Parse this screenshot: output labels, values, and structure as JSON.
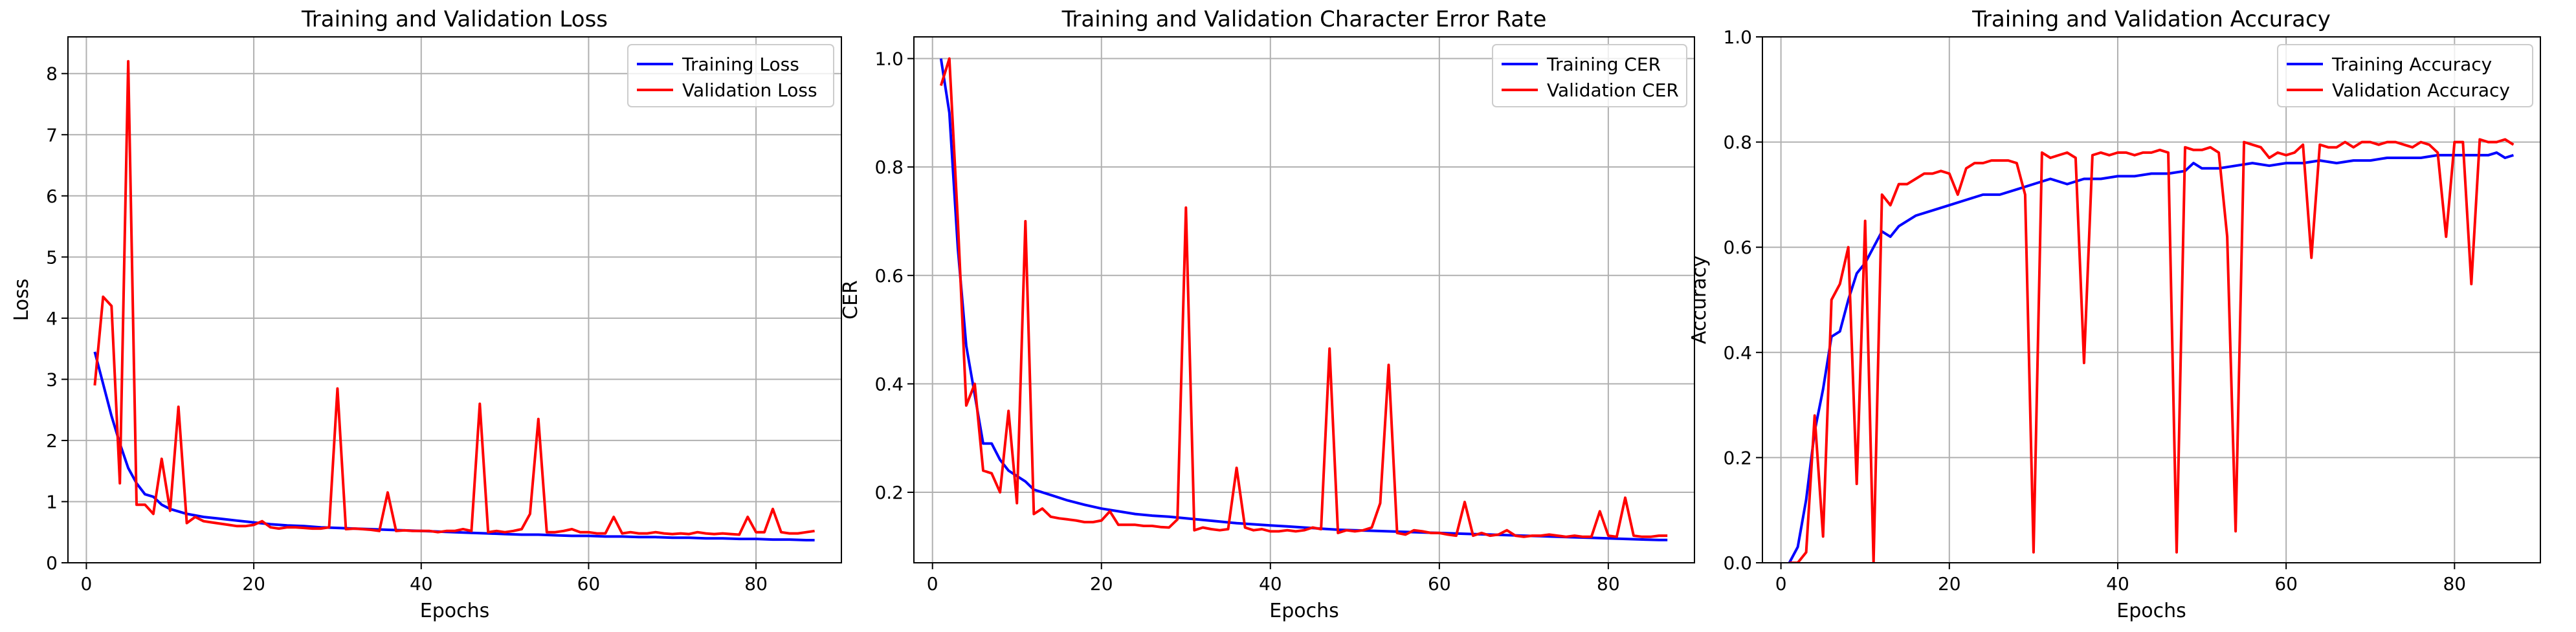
{
  "chart_data": [
    {
      "type": "line",
      "title": "Training and Validation Loss",
      "xlabel": "Epochs",
      "ylabel": "Loss",
      "xlim": [
        -2.2,
        90.2
      ],
      "ylim": [
        0,
        8.6
      ],
      "xticks": [
        0,
        20,
        40,
        60,
        80
      ],
      "yticks": [
        0,
        1,
        2,
        3,
        4,
        5,
        6,
        7,
        8
      ],
      "xticklabels": [
        "0",
        "20",
        "40",
        "60",
        "80"
      ],
      "yticklabels": [
        "0",
        "1",
        "2",
        "3",
        "4",
        "5",
        "6",
        "7",
        "8"
      ],
      "grid": true,
      "legend": "top-right",
      "series": [
        {
          "name": "Training Loss",
          "color": "#0000ff",
          "x": [
            1,
            3,
            4,
            5,
            6,
            7,
            8,
            9,
            10,
            12,
            14,
            16,
            18,
            20,
            22,
            24,
            26,
            28,
            30,
            32,
            34,
            36,
            38,
            40,
            42,
            44,
            46,
            48,
            50,
            52,
            54,
            56,
            58,
            60,
            62,
            64,
            66,
            68,
            70,
            72,
            74,
            76,
            78,
            80,
            82,
            84,
            86,
            87
          ],
          "y": [
            3.45,
            2.4,
            1.95,
            1.55,
            1.3,
            1.12,
            1.08,
            0.95,
            0.88,
            0.8,
            0.75,
            0.72,
            0.69,
            0.66,
            0.63,
            0.61,
            0.6,
            0.58,
            0.57,
            0.56,
            0.55,
            0.54,
            0.53,
            0.52,
            0.51,
            0.5,
            0.49,
            0.48,
            0.47,
            0.46,
            0.46,
            0.45,
            0.44,
            0.44,
            0.43,
            0.43,
            0.42,
            0.42,
            0.41,
            0.41,
            0.4,
            0.4,
            0.39,
            0.39,
            0.38,
            0.38,
            0.37,
            0.37
          ]
        },
        {
          "name": "Validation Loss",
          "color": "#ff0000",
          "x": [
            1,
            2,
            3,
            4,
            5,
            6,
            7,
            8,
            9,
            10,
            11,
            12,
            13,
            14,
            15,
            16,
            17,
            18,
            19,
            20,
            21,
            22,
            23,
            24,
            25,
            26,
            27,
            28,
            29,
            30,
            31,
            32,
            33,
            34,
            35,
            36,
            37,
            38,
            39,
            40,
            41,
            42,
            43,
            44,
            45,
            46,
            47,
            48,
            49,
            50,
            51,
            52,
            53,
            54,
            55,
            56,
            57,
            58,
            59,
            60,
            61,
            62,
            63,
            64,
            65,
            66,
            67,
            68,
            69,
            70,
            71,
            72,
            73,
            74,
            75,
            76,
            77,
            78,
            79,
            80,
            81,
            82,
            83,
            84,
            85,
            86,
            87
          ],
          "y": [
            2.9,
            4.35,
            4.2,
            1.3,
            8.2,
            0.95,
            0.95,
            0.8,
            1.7,
            0.85,
            2.55,
            0.65,
            0.75,
            0.68,
            0.66,
            0.64,
            0.62,
            0.6,
            0.6,
            0.62,
            0.68,
            0.58,
            0.56,
            0.58,
            0.58,
            0.57,
            0.56,
            0.56,
            0.58,
            2.85,
            0.55,
            0.56,
            0.55,
            0.54,
            0.52,
            1.15,
            0.52,
            0.53,
            0.52,
            0.52,
            0.52,
            0.5,
            0.52,
            0.52,
            0.55,
            0.52,
            2.6,
            0.5,
            0.52,
            0.5,
            0.52,
            0.55,
            0.8,
            2.35,
            0.5,
            0.5,
            0.52,
            0.55,
            0.5,
            0.5,
            0.48,
            0.48,
            0.75,
            0.48,
            0.5,
            0.48,
            0.48,
            0.5,
            0.48,
            0.47,
            0.48,
            0.47,
            0.5,
            0.48,
            0.47,
            0.48,
            0.47,
            0.46,
            0.75,
            0.5,
            0.5,
            0.88,
            0.5,
            0.48,
            0.48,
            0.5,
            0.52
          ]
        }
      ]
    },
    {
      "type": "line",
      "title": "Training and Validation Character Error Rate",
      "xlabel": "Epochs",
      "ylabel": "CER",
      "xlim": [
        -2.2,
        90.2
      ],
      "ylim": [
        0.07,
        1.04
      ],
      "xticks": [
        0,
        20,
        40,
        60,
        80
      ],
      "yticks": [
        0.2,
        0.4,
        0.6,
        0.8,
        1.0
      ],
      "xticklabels": [
        "0",
        "20",
        "40",
        "60",
        "80"
      ],
      "yticklabels": [
        "0.2",
        "0.4",
        "0.6",
        "0.8",
        "1.0"
      ],
      "grid": true,
      "legend": "top-right",
      "series": [
        {
          "name": "Training CER",
          "color": "#0000ff",
          "x": [
            1,
            2,
            3,
            4,
            5,
            6,
            7,
            8,
            9,
            10,
            11,
            12,
            14,
            16,
            18,
            20,
            22,
            24,
            26,
            28,
            30,
            32,
            34,
            36,
            38,
            40,
            42,
            44,
            46,
            48,
            50,
            52,
            54,
            56,
            58,
            60,
            62,
            64,
            66,
            68,
            70,
            72,
            74,
            76,
            78,
            80,
            82,
            84,
            86,
            87
          ],
          "y": [
            1.0,
            0.9,
            0.65,
            0.47,
            0.38,
            0.29,
            0.29,
            0.26,
            0.24,
            0.23,
            0.22,
            0.205,
            0.195,
            0.185,
            0.177,
            0.17,
            0.165,
            0.16,
            0.157,
            0.155,
            0.152,
            0.149,
            0.146,
            0.143,
            0.141,
            0.139,
            0.137,
            0.135,
            0.133,
            0.131,
            0.13,
            0.129,
            0.128,
            0.127,
            0.126,
            0.125,
            0.124,
            0.123,
            0.122,
            0.121,
            0.12,
            0.119,
            0.118,
            0.117,
            0.116,
            0.115,
            0.114,
            0.113,
            0.112,
            0.112
          ]
        },
        {
          "name": "Validation CER",
          "color": "#ff0000",
          "x": [
            1,
            2,
            3,
            4,
            5,
            6,
            7,
            8,
            9,
            10,
            11,
            12,
            13,
            14,
            15,
            16,
            17,
            18,
            19,
            20,
            21,
            22,
            23,
            24,
            25,
            26,
            27,
            28,
            29,
            30,
            31,
            32,
            33,
            34,
            35,
            36,
            37,
            38,
            39,
            40,
            41,
            42,
            43,
            44,
            45,
            46,
            47,
            48,
            49,
            50,
            51,
            52,
            53,
            54,
            55,
            56,
            57,
            58,
            59,
            60,
            61,
            62,
            63,
            64,
            65,
            66,
            67,
            68,
            69,
            70,
            71,
            72,
            73,
            74,
            75,
            76,
            77,
            78,
            79,
            80,
            81,
            82,
            83,
            84,
            85,
            86,
            87
          ],
          "y": [
            0.95,
            1.0,
            0.7,
            0.36,
            0.4,
            0.24,
            0.235,
            0.2,
            0.35,
            0.18,
            0.7,
            0.16,
            0.17,
            0.155,
            0.152,
            0.15,
            0.148,
            0.145,
            0.145,
            0.148,
            0.165,
            0.14,
            0.14,
            0.14,
            0.138,
            0.138,
            0.136,
            0.135,
            0.15,
            0.725,
            0.13,
            0.135,
            0.132,
            0.13,
            0.132,
            0.245,
            0.135,
            0.13,
            0.132,
            0.128,
            0.128,
            0.13,
            0.128,
            0.13,
            0.135,
            0.132,
            0.465,
            0.125,
            0.13,
            0.128,
            0.13,
            0.135,
            0.18,
            0.435,
            0.125,
            0.122,
            0.13,
            0.128,
            0.125,
            0.125,
            0.122,
            0.12,
            0.182,
            0.12,
            0.125,
            0.12,
            0.122,
            0.13,
            0.12,
            0.118,
            0.12,
            0.12,
            0.122,
            0.12,
            0.118,
            0.12,
            0.118,
            0.118,
            0.165,
            0.12,
            0.118,
            0.19,
            0.12,
            0.118,
            0.118,
            0.12,
            0.12
          ]
        }
      ]
    },
    {
      "type": "line",
      "title": "Training and Validation Accuracy",
      "xlabel": "Epochs",
      "ylabel": "Accuracy",
      "xlim": [
        -2.2,
        90.2
      ],
      "ylim": [
        0,
        1.0
      ],
      "xticks": [
        0,
        20,
        40,
        60,
        80
      ],
      "yticks": [
        0.0,
        0.2,
        0.4,
        0.6,
        0.8,
        1.0
      ],
      "xticklabels": [
        "0",
        "20",
        "40",
        "60",
        "80"
      ],
      "yticklabels": [
        "0.0",
        "0.2",
        "0.4",
        "0.6",
        "0.8",
        "1.0"
      ],
      "grid": true,
      "legend": "top-right",
      "series": [
        {
          "name": "Training Accuracy",
          "color": "#0000ff",
          "x": [
            1,
            2,
            3,
            4,
            5,
            6,
            7,
            8,
            9,
            10,
            11,
            12,
            13,
            14,
            16,
            18,
            20,
            22,
            24,
            26,
            28,
            30,
            32,
            34,
            36,
            38,
            40,
            42,
            44,
            46,
            48,
            49,
            50,
            52,
            54,
            56,
            58,
            60,
            62,
            64,
            66,
            68,
            70,
            72,
            74,
            76,
            78,
            80,
            82,
            84,
            85,
            86,
            87
          ],
          "y": [
            0.0,
            0.03,
            0.12,
            0.25,
            0.33,
            0.43,
            0.44,
            0.5,
            0.55,
            0.57,
            0.6,
            0.63,
            0.62,
            0.64,
            0.66,
            0.67,
            0.68,
            0.69,
            0.7,
            0.7,
            0.71,
            0.72,
            0.73,
            0.72,
            0.73,
            0.73,
            0.735,
            0.735,
            0.74,
            0.74,
            0.745,
            0.76,
            0.75,
            0.75,
            0.755,
            0.76,
            0.755,
            0.76,
            0.76,
            0.765,
            0.76,
            0.765,
            0.765,
            0.77,
            0.77,
            0.77,
            0.775,
            0.775,
            0.775,
            0.775,
            0.78,
            0.77,
            0.775
          ]
        },
        {
          "name": "Validation Accuracy",
          "color": "#ff0000",
          "x": [
            1,
            2,
            3,
            4,
            5,
            6,
            7,
            8,
            9,
            10,
            11,
            12,
            13,
            14,
            15,
            16,
            17,
            18,
            19,
            20,
            21,
            22,
            23,
            24,
            25,
            26,
            27,
            28,
            29,
            30,
            31,
            32,
            33,
            34,
            35,
            36,
            37,
            38,
            39,
            40,
            41,
            42,
            43,
            44,
            45,
            46,
            47,
            48,
            49,
            50,
            51,
            52,
            53,
            54,
            55,
            56,
            57,
            58,
            59,
            60,
            61,
            62,
            63,
            64,
            65,
            66,
            67,
            68,
            69,
            70,
            71,
            72,
            73,
            74,
            75,
            76,
            77,
            78,
            79,
            80,
            81,
            82,
            83,
            84,
            85,
            86,
            87
          ],
          "y": [
            0.0,
            0.0,
            0.02,
            0.28,
            0.05,
            0.5,
            0.53,
            0.6,
            0.15,
            0.65,
            0.0,
            0.7,
            0.68,
            0.72,
            0.72,
            0.73,
            0.74,
            0.74,
            0.745,
            0.74,
            0.7,
            0.75,
            0.76,
            0.76,
            0.765,
            0.765,
            0.765,
            0.76,
            0.7,
            0.02,
            0.78,
            0.77,
            0.775,
            0.78,
            0.77,
            0.38,
            0.775,
            0.78,
            0.775,
            0.78,
            0.78,
            0.775,
            0.78,
            0.78,
            0.785,
            0.78,
            0.02,
            0.79,
            0.785,
            0.785,
            0.79,
            0.78,
            0.62,
            0.06,
            0.8,
            0.795,
            0.79,
            0.77,
            0.78,
            0.775,
            0.78,
            0.795,
            0.58,
            0.795,
            0.79,
            0.79,
            0.8,
            0.79,
            0.8,
            0.8,
            0.795,
            0.8,
            0.8,
            0.795,
            0.79,
            0.8,
            0.795,
            0.78,
            0.62,
            0.8,
            0.8,
            0.53,
            0.805,
            0.8,
            0.8,
            0.805,
            0.795
          ]
        }
      ]
    }
  ]
}
